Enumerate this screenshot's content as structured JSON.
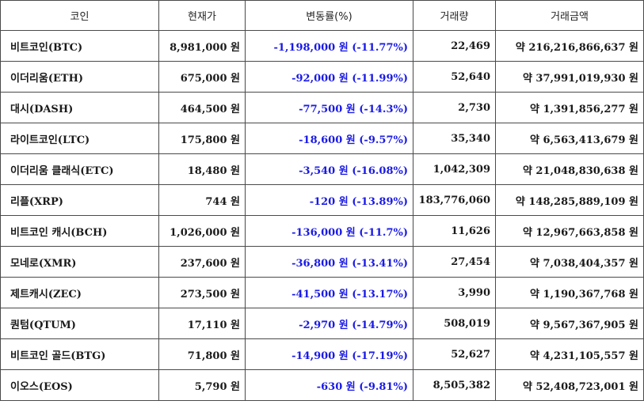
{
  "table": {
    "headers": {
      "name": "코인",
      "price": "현재가",
      "change": "변동률(%)",
      "volume": "거래량",
      "amount": "거래금액"
    },
    "rows": [
      {
        "name": "비트코인(BTC)",
        "price": "8,981,000 원",
        "change": "-1,198,000 원 (-11.77%)",
        "volume": "22,469",
        "amount": "약 216,216,866,637 원"
      },
      {
        "name": "이더리움(ETH)",
        "price": "675,000 원",
        "change": "-92,000 원 (-11.99%)",
        "volume": "52,640",
        "amount": "약 37,991,019,930 원"
      },
      {
        "name": "대시(DASH)",
        "price": "464,500 원",
        "change": "-77,500 원 (-14.3%)",
        "volume": "2,730",
        "amount": "약 1,391,856,277 원"
      },
      {
        "name": "라이트코인(LTC)",
        "price": "175,800 원",
        "change": "-18,600 원 (-9.57%)",
        "volume": "35,340",
        "amount": "약 6,563,413,679 원"
      },
      {
        "name": "이더리움 클래식(ETC)",
        "price": "18,480 원",
        "change": "-3,540 원 (-16.08%)",
        "volume": "1,042,309",
        "amount": "약 21,048,830,638 원"
      },
      {
        "name": "리플(XRP)",
        "price": "744 원",
        "change": "-120 원 (-13.89%)",
        "volume": "183,776,060",
        "amount": "약 148,285,889,109 원"
      },
      {
        "name": "비트코인 캐시(BCH)",
        "price": "1,026,000 원",
        "change": "-136,000 원 (-11.7%)",
        "volume": "11,626",
        "amount": "약 12,967,663,858 원"
      },
      {
        "name": "모네로(XMR)",
        "price": "237,600 원",
        "change": "-36,800 원 (-13.41%)",
        "volume": "27,454",
        "amount": "약 7,038,404,357 원"
      },
      {
        "name": "제트캐시(ZEC)",
        "price": "273,500 원",
        "change": "-41,500 원 (-13.17%)",
        "volume": "3,990",
        "amount": "약 1,190,367,768 원"
      },
      {
        "name": "퀀텀(QTUM)",
        "price": "17,110 원",
        "change": "-2,970 원 (-14.79%)",
        "volume": "508,019",
        "amount": "약 9,567,367,905 원"
      },
      {
        "name": "비트코인 골드(BTG)",
        "price": "71,800 원",
        "change": "-14,900 원 (-17.19%)",
        "volume": "52,627",
        "amount": "약 4,231,105,557 원"
      },
      {
        "name": "이오스(EOS)",
        "price": "5,790 원",
        "change": "-630 원 (-9.81%)",
        "volume": "8,505,382",
        "amount": "약 52,408,723,001 원"
      }
    ]
  },
  "colors": {
    "negative_change": "#1a1ae6",
    "border": "#4a4a4a"
  }
}
